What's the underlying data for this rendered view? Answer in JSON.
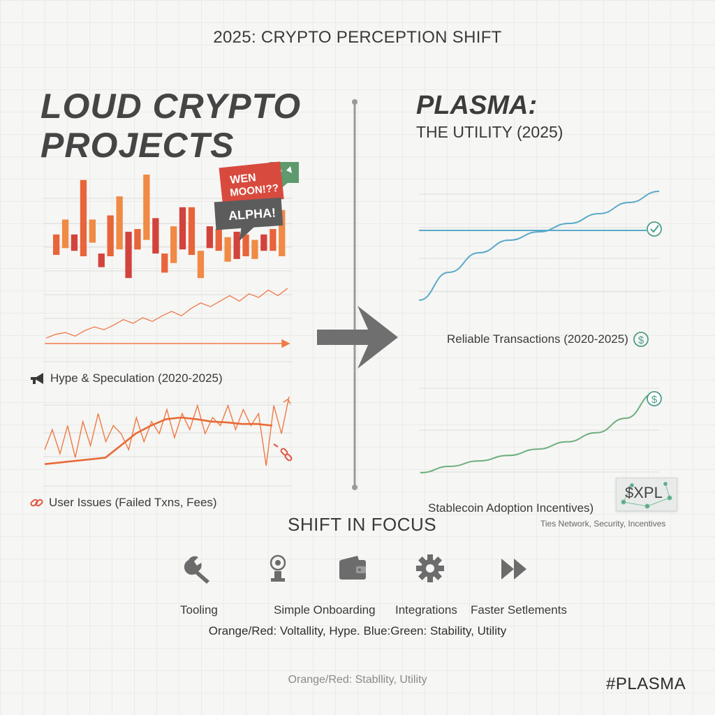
{
  "header": {
    "title": "2025: CRYPTO PERCEPTION SHIFT"
  },
  "left_panel": {
    "title_line1": "LOUD CRYPTO",
    "title_line2": "PROJECTS",
    "bubbles": {
      "primary": "WEN MOON!??",
      "secondary": "ALPHA!"
    },
    "hype_caption": "Hype & Speculation (2020-2025)",
    "issues_caption": "User Issues (Failed Txns, Fees)"
  },
  "right_panel": {
    "title": "PLASMA:",
    "subtitle": "THE UTILITY (2025)",
    "reliable_caption": "Reliable Transactions (2020-2025)",
    "stablecoin_caption": "Stablecoin Adoption Incentives)",
    "badge_label": "$XPL",
    "badge_note": "Ties Network, Security, Incentives"
  },
  "shift": {
    "title": "SHIFT IN FOCUS",
    "items": [
      {
        "label": "Tooling",
        "icon": "wrench-icon"
      },
      {
        "label": "Simple Onboarding",
        "icon": "onboarding-icon"
      },
      {
        "label": "Integrations",
        "icon": "wallet-icon"
      },
      {
        "label": "Faster Setlements",
        "icon": "gear-icon"
      },
      {
        "label": "",
        "icon": "fast-forward-icon"
      }
    ]
  },
  "legend_text": "Orange/Red: Voltallity, Hype. Blue:Green: Stability, Utility",
  "footer_text": "Orange/Red: Stabllity, Utility",
  "hashtag": "#PLASMA",
  "colors": {
    "hype_dark": "#d2433c",
    "hype_mid": "#e8643a",
    "hype_light": "#f08a45",
    "blue": "#5aa9c8",
    "green": "#6cae7d",
    "teal": "#4f9e8a",
    "text": "#3a3a3a"
  },
  "chart_data": [
    {
      "id": "hype",
      "type": "bar",
      "title": "Hype & Speculation (2020-2025)",
      "note": "floating volatility bars with upward trend line",
      "ylim": [
        0,
        100
      ],
      "bars": [
        {
          "low": 41,
          "high": 56
        },
        {
          "low": 46,
          "high": 67
        },
        {
          "low": 44,
          "high": 56
        },
        {
          "low": 40,
          "high": 96
        },
        {
          "low": 50,
          "high": 67
        },
        {
          "low": 32,
          "high": 42
        },
        {
          "low": 40,
          "high": 70
        },
        {
          "low": 45,
          "high": 84
        },
        {
          "low": 24,
          "high": 58
        },
        {
          "low": 45,
          "high": 60
        },
        {
          "low": 52,
          "high": 100
        },
        {
          "low": 42,
          "high": 68
        },
        {
          "low": 28,
          "high": 42
        },
        {
          "low": 35,
          "high": 62
        },
        {
          "low": 45,
          "high": 76
        },
        {
          "low": 41,
          "high": 76
        },
        {
          "low": 24,
          "high": 44
        },
        {
          "low": 46,
          "high": 62
        },
        {
          "low": 44,
          "high": 60
        },
        {
          "low": 36,
          "high": 54
        },
        {
          "low": 38,
          "high": 58
        },
        {
          "low": 40,
          "high": 56
        },
        {
          "low": 38,
          "high": 52
        },
        {
          "low": 44,
          "high": 56
        },
        {
          "low": 44,
          "high": 60
        },
        {
          "low": 40,
          "high": 74
        }
      ],
      "trend": [
        6,
        10,
        12,
        8,
        14,
        18,
        15,
        20,
        26,
        22,
        28,
        24,
        30,
        35,
        30,
        38,
        44,
        40,
        46,
        52,
        46,
        54,
        50,
        58,
        52,
        60
      ]
    },
    {
      "id": "issues",
      "type": "line",
      "title": "User Issues (Failed Txns, Fees)",
      "ylim": [
        0,
        100
      ],
      "series": [
        {
          "name": "volatile",
          "values": [
            40,
            65,
            35,
            70,
            30,
            75,
            45,
            85,
            50,
            70,
            60,
            40,
            80,
            50,
            75,
            60,
            90,
            55,
            85,
            65,
            95,
            60,
            80,
            70,
            95,
            65,
            90,
            70,
            85,
            20,
            95,
            60,
            110
          ]
        },
        {
          "name": "smoothed",
          "values": [
            22,
            24,
            26,
            28,
            30,
            45,
            60,
            70,
            78,
            80,
            78,
            75,
            74,
            72,
            72,
            70
          ]
        }
      ]
    },
    {
      "id": "reliable",
      "type": "line",
      "title": "Reliable Transactions (2020-2025)",
      "ylim": [
        0,
        100
      ],
      "series": [
        {
          "name": "baseline",
          "values": [
            60,
            60,
            60,
            60,
            60,
            60,
            60,
            60,
            60
          ]
        },
        {
          "name": "growth",
          "values": [
            10,
            30,
            44,
            53,
            59,
            65,
            72,
            80,
            88
          ]
        }
      ]
    },
    {
      "id": "stablecoin",
      "type": "line",
      "title": "Stablecoin Adoption Incentives)",
      "ylim": [
        0,
        100
      ],
      "series": [
        {
          "name": "adoption",
          "values": [
            10,
            17,
            23,
            29,
            36,
            44,
            54,
            70,
            98
          ]
        }
      ]
    }
  ]
}
